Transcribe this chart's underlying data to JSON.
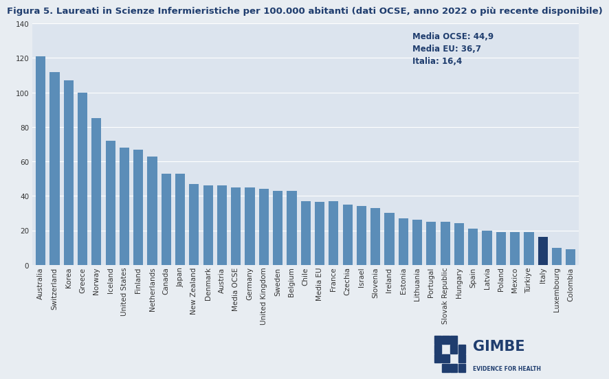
{
  "title": "Figura 5. Laureati in Scienze Infermieristiche per 100.000 abitanti (dati OCSE, anno 2022 o più recente disponibile)",
  "categories": [
    "Australia",
    "Switzerland",
    "Korea",
    "Greece",
    "Norway",
    "Iceland",
    "United States",
    "Finland",
    "Netherlands",
    "Canada",
    "Japan",
    "New Zealand",
    "Denmark",
    "Austria",
    "Media OCSE",
    "Germany",
    "United Kingdom",
    "Sweden",
    "Belgium",
    "Chile",
    "Media EU",
    "France",
    "Czechia",
    "Israel",
    "Slovenia",
    "Ireland",
    "Estonia",
    "Lithuania",
    "Portugal",
    "Slovak Republic",
    "Hungary",
    "Spain",
    "Latvia",
    "Poland",
    "Mexico",
    "Türkiye",
    "Italy",
    "Luxembourg",
    "Colombia"
  ],
  "values": [
    121,
    112,
    107,
    100,
    85,
    72,
    68,
    67,
    63,
    53,
    53,
    47,
    46,
    46,
    44.9,
    45,
    44,
    43,
    43,
    37,
    36.7,
    37,
    35,
    34,
    33,
    30,
    27,
    26,
    25,
    25,
    24,
    21,
    20,
    19,
    19,
    19,
    16.4,
    10,
    9
  ],
  "bar_color_default": "#5b8db8",
  "bar_color_italy": "#1f3d6e",
  "italy_index": 36,
  "annotation_text": "Media OCSE: 44,9\nMedia EU: 36,7\nItalia: 16,4",
  "annotation_color": "#1f3d6e",
  "ylim": [
    0,
    140
  ],
  "yticks": [
    0,
    20,
    40,
    60,
    80,
    100,
    120,
    140
  ],
  "background_color": "#e8edf2",
  "plot_bg_color": "#dce4ee",
  "grid_color": "#ffffff",
  "title_color": "#1f3d6e",
  "title_fontsize": 9.5,
  "tick_fontsize": 7.5,
  "annotation_fontsize": 8.5,
  "gimbe_color": "#1f3d6e"
}
